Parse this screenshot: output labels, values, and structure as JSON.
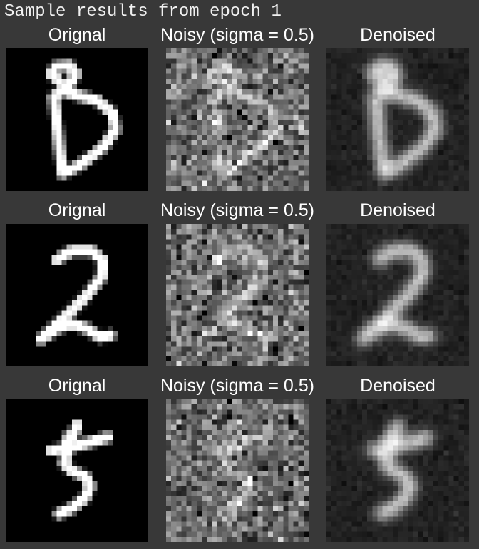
{
  "window": {
    "title": "Sample results from epoch 1"
  },
  "columns": {
    "original": "Orignal",
    "noisy": "Noisy (sigma = 0.5)",
    "denoised": "Denoised"
  },
  "rows": [
    {
      "digit": "8",
      "original_label": "Orignal",
      "noisy_label": "Noisy (sigma = 0.5)",
      "denoised_label": "Denoised"
    },
    {
      "digit": "2",
      "original_label": "Orignal",
      "noisy_label": "Noisy (sigma = 0.5)",
      "denoised_label": "Denoised"
    },
    {
      "digit": "5",
      "original_label": "Orignal",
      "noisy_label": "Noisy (sigma = 0.5)",
      "denoised_label": "Denoised"
    }
  ],
  "colors": {
    "background": "#383838",
    "text": "#ffffff",
    "image_background": "#000000"
  },
  "noise_sigma": 0.5,
  "epoch": 1
}
